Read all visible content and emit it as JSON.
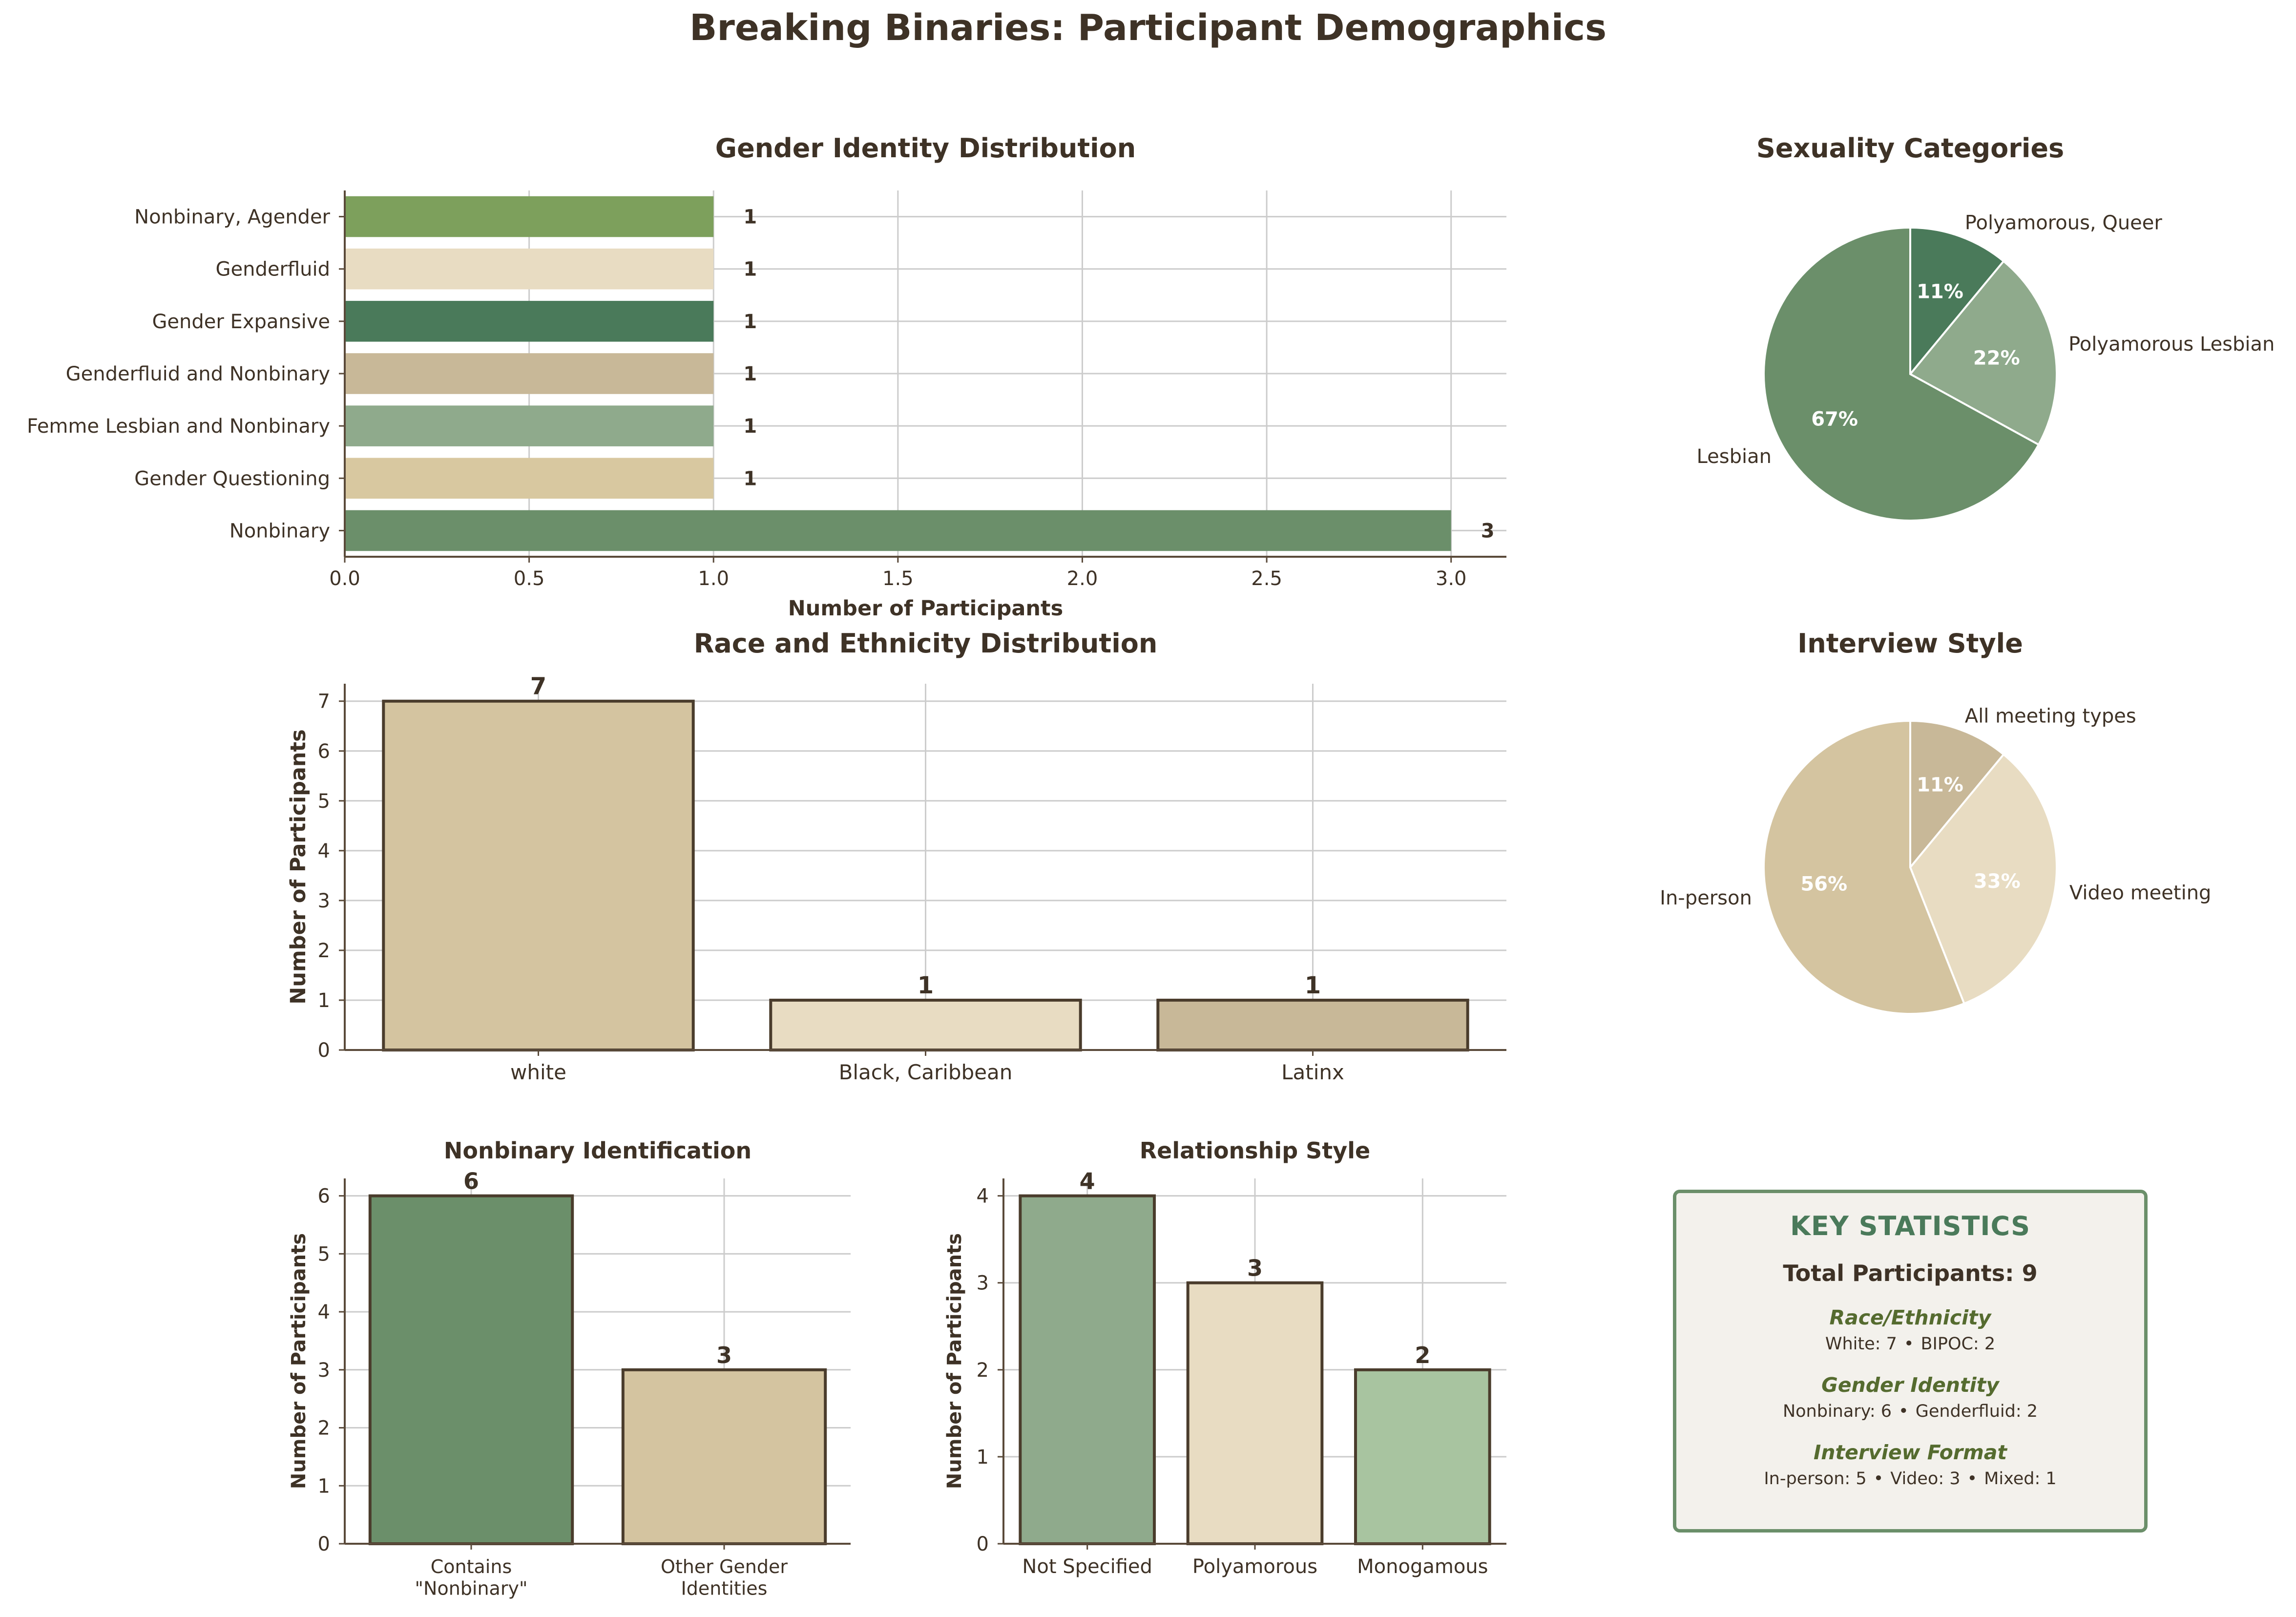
{
  "figure_title": "Breaking Binaries: Participant Demographics",
  "colors": {
    "text": "#3e3226",
    "axis": "#5a4a3a",
    "grid": "#cccccc",
    "bar_edge": "#4a3c2c",
    "stats_title": "#4a7a5a",
    "stats_section": "#556b2f",
    "stats_border": "#6b8f6a",
    "stats_bg": "#f3f1ec"
  },
  "chart_data": [
    {
      "id": "gender",
      "type": "bar",
      "orientation": "horizontal",
      "title": "Gender Identity Distribution",
      "xlabel": "Number of Participants",
      "ylabel": "",
      "categories": [
        "Nonbinary, Agender",
        "Genderfluid",
        "Gender Expansive",
        "Genderfluid and Nonbinary",
        "Femme Lesbian and Nonbinary",
        "Gender Questioning",
        "Nonbinary"
      ],
      "values": [
        1,
        1,
        1,
        1,
        1,
        1,
        3
      ],
      "colors": [
        "#7da05c",
        "#e8dcc2",
        "#4a7a5a",
        "#c8b898",
        "#8faa8c",
        "#d8c8a0",
        "#6b8f6a"
      ],
      "xlim": [
        0,
        3.15
      ],
      "xticks": [
        0.0,
        0.5,
        1.0,
        1.5,
        2.0,
        2.5,
        3.0
      ],
      "xtick_labels": [
        "0.0",
        "0.5",
        "1.0",
        "1.5",
        "2.0",
        "2.5",
        "3.0"
      ],
      "grid": true
    },
    {
      "id": "sexuality",
      "type": "pie",
      "title": "Sexuality Categories",
      "labels": [
        "Polyamorous, Queer",
        "Polyamorous Lesbian",
        "Lesbian"
      ],
      "values": [
        11,
        22,
        67
      ],
      "pct_labels": [
        "11%",
        "22%",
        "67%"
      ],
      "colors": [
        "#4a7a5a",
        "#8faa8c",
        "#6b8f6a"
      ],
      "start": "top",
      "direction": "clockwise"
    },
    {
      "id": "race",
      "type": "bar",
      "title": "Race and Ethnicity Distribution",
      "xlabel": "",
      "ylabel": "Number of Participants",
      "categories": [
        "white",
        "Black, Caribbean",
        "Latinx"
      ],
      "values": [
        7,
        1,
        1
      ],
      "colors": [
        "#d4c4a0",
        "#e8dcc2",
        "#c8b898"
      ],
      "ylim": [
        0,
        7.35
      ],
      "yticks": [
        0,
        1,
        2,
        3,
        4,
        5,
        6,
        7
      ],
      "grid": true
    },
    {
      "id": "interview",
      "type": "pie",
      "title": "Interview Style",
      "labels": [
        "All meeting types",
        "Video meeting",
        "In-person"
      ],
      "values": [
        11,
        33,
        56
      ],
      "pct_labels": [
        "11%",
        "33%",
        "56%"
      ],
      "colors": [
        "#c8b898",
        "#e8dcc2",
        "#d4c4a0"
      ],
      "start": "top",
      "direction": "clockwise"
    },
    {
      "id": "nonbinary",
      "type": "bar",
      "title": "Nonbinary Identification",
      "xlabel": "",
      "ylabel": "Number of Participants",
      "categories": [
        "Contains\n\"Nonbinary\"",
        "Other Gender\nIdentities"
      ],
      "values": [
        6,
        3
      ],
      "colors": [
        "#6b8f6a",
        "#d4c4a0"
      ],
      "ylim": [
        0,
        6.3
      ],
      "yticks": [
        0,
        1,
        2,
        3,
        4,
        5,
        6
      ],
      "grid": true
    },
    {
      "id": "relationship",
      "type": "bar",
      "title": "Relationship Style",
      "xlabel": "",
      "ylabel": "Number of Participants",
      "categories": [
        "Not Specified",
        "Polyamorous",
        "Monogamous"
      ],
      "values": [
        4,
        3,
        2
      ],
      "colors": [
        "#8faa8c",
        "#e8dcc2",
        "#a8c4a0"
      ],
      "ylim": [
        0,
        4.2
      ],
      "yticks": [
        0,
        1,
        2,
        3,
        4
      ],
      "grid": true
    }
  ],
  "stats": {
    "title": "KEY STATISTICS",
    "total": "Total Participants: 9",
    "race_heading": "Race/Ethnicity",
    "race_items": [
      "White: 7",
      "BIPOC: 2"
    ],
    "gender_heading": "Gender Identity",
    "gender_items": [
      "Nonbinary: 6",
      "Genderfluid: 2"
    ],
    "format_heading": "Interview Format",
    "format_items": [
      "In-person: 5",
      "Video: 3",
      "Mixed: 1"
    ],
    "separator": "•"
  }
}
